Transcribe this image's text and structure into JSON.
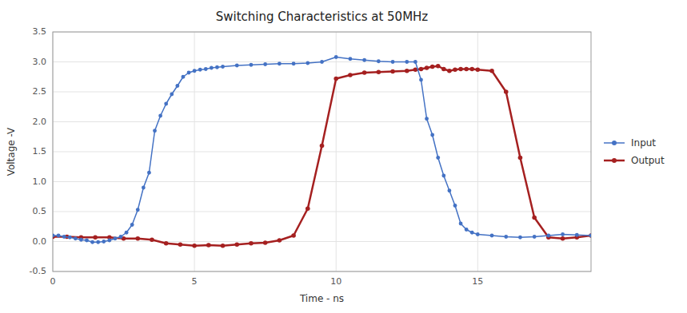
{
  "chart_data": {
    "type": "line",
    "title": "Switching Characteristics at 50MHz",
    "xlabel": "Time  -  ns",
    "ylabel": "Voltage -V",
    "xlim": [
      0,
      19
    ],
    "ylim": [
      -0.5,
      3.5
    ],
    "xticks": [
      0,
      5,
      10,
      15
    ],
    "yticks": [
      -0.5,
      {
        "value": 0.0,
        "label": "0.0"
      },
      0.5,
      {
        "value": 1.0,
        "label": "1.0"
      },
      1.5,
      {
        "value": 2.0,
        "label": "2.0"
      },
      2.5,
      {
        "value": 3.0,
        "label": "3.0"
      },
      3.5
    ],
    "grid": true,
    "legend": "right",
    "series": [
      {
        "name": "Input",
        "color": "#4472C4",
        "marker": "circle",
        "line_style": "solid",
        "x": [
          0.0,
          0.2,
          0.4,
          0.6,
          0.8,
          1.0,
          1.2,
          1.4,
          1.6,
          1.8,
          2.0,
          2.2,
          2.4,
          2.6,
          2.8,
          3.0,
          3.2,
          3.4,
          3.6,
          3.8,
          4.0,
          4.2,
          4.4,
          4.6,
          4.8,
          5.0,
          5.2,
          5.4,
          5.6,
          5.8,
          6.0,
          6.5,
          7.0,
          7.5,
          8.0,
          8.5,
          9.0,
          9.5,
          10.0,
          10.5,
          11.0,
          11.5,
          12.0,
          12.5,
          12.8,
          13.0,
          13.2,
          13.4,
          13.6,
          13.8,
          14.0,
          14.2,
          14.4,
          14.6,
          14.8,
          15.0,
          15.5,
          16.0,
          16.5,
          17.0,
          17.5,
          18.0,
          18.5,
          19.0
        ],
        "values": [
          0.1,
          0.1,
          0.08,
          0.07,
          0.05,
          0.03,
          0.02,
          -0.01,
          -0.01,
          0.0,
          0.02,
          0.05,
          0.08,
          0.15,
          0.28,
          0.53,
          0.9,
          1.15,
          1.85,
          2.1,
          2.3,
          2.46,
          2.6,
          2.75,
          2.82,
          2.85,
          2.87,
          2.88,
          2.9,
          2.91,
          2.92,
          2.94,
          2.95,
          2.96,
          2.97,
          2.97,
          2.98,
          3.0,
          3.08,
          3.05,
          3.03,
          3.01,
          3.0,
          3.0,
          3.0,
          2.7,
          2.05,
          1.78,
          1.4,
          1.1,
          0.85,
          0.6,
          0.3,
          0.2,
          0.15,
          0.12,
          0.1,
          0.08,
          0.07,
          0.08,
          0.1,
          0.12,
          0.11,
          0.1
        ]
      },
      {
        "name": "Output",
        "color": "#A52020",
        "marker": "circle",
        "line_style": "solid",
        "x": [
          0.0,
          0.5,
          1.0,
          1.5,
          2.0,
          2.5,
          3.0,
          3.5,
          4.0,
          4.5,
          5.0,
          5.5,
          6.0,
          6.5,
          7.0,
          7.5,
          8.0,
          8.5,
          9.0,
          9.5,
          10.0,
          10.5,
          11.0,
          11.5,
          12.0,
          12.5,
          12.8,
          13.0,
          13.2,
          13.4,
          13.6,
          13.8,
          14.0,
          14.2,
          14.4,
          14.6,
          14.8,
          15.0,
          15.5,
          16.0,
          16.5,
          17.0,
          17.5,
          18.0,
          18.5,
          19.0
        ],
        "values": [
          0.08,
          0.08,
          0.07,
          0.07,
          0.07,
          0.05,
          0.05,
          0.03,
          -0.03,
          -0.05,
          -0.07,
          -0.06,
          -0.07,
          -0.05,
          -0.03,
          -0.02,
          0.02,
          0.1,
          0.55,
          1.6,
          2.72,
          2.78,
          2.82,
          2.83,
          2.84,
          2.85,
          2.87,
          2.88,
          2.9,
          2.92,
          2.93,
          2.88,
          2.85,
          2.87,
          2.88,
          2.88,
          2.88,
          2.87,
          2.85,
          2.5,
          1.4,
          0.4,
          0.07,
          0.05,
          0.07,
          0.1
        ]
      }
    ]
  }
}
